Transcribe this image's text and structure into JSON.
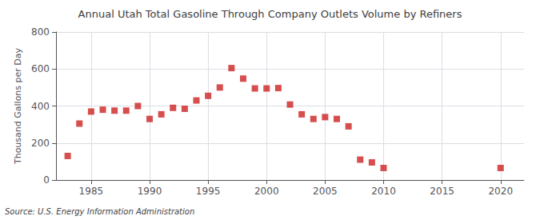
{
  "chart_data": {
    "type": "scatter",
    "title": "Annual Utah Total Gasoline Through Company Outlets Volume by Refiners",
    "ylabel": "Thousand Gallons per Day",
    "source": "Source: U.S. Energy Information Administration",
    "x": [
      1983,
      1984,
      1985,
      1986,
      1987,
      1988,
      1989,
      1990,
      1991,
      1992,
      1993,
      1994,
      1995,
      1996,
      1997,
      1998,
      1999,
      2000,
      2001,
      2002,
      2003,
      2004,
      2005,
      2006,
      2007,
      2008,
      2009,
      2010,
      2020
    ],
    "values": [
      130,
      305,
      370,
      380,
      375,
      375,
      400,
      330,
      355,
      390,
      385,
      430,
      455,
      500,
      605,
      548,
      495,
      495,
      497,
      408,
      355,
      330,
      340,
      330,
      290,
      110,
      95,
      65,
      65
    ],
    "color": "#cc2222",
    "marker": "square",
    "xlim": [
      1982,
      2022
    ],
    "xticks": [
      1985,
      1990,
      1995,
      2000,
      2005,
      2010,
      2015,
      2020
    ],
    "ylim": [
      0,
      800
    ],
    "yticks": [
      0,
      200,
      400,
      600,
      800
    ],
    "grid": true
  }
}
